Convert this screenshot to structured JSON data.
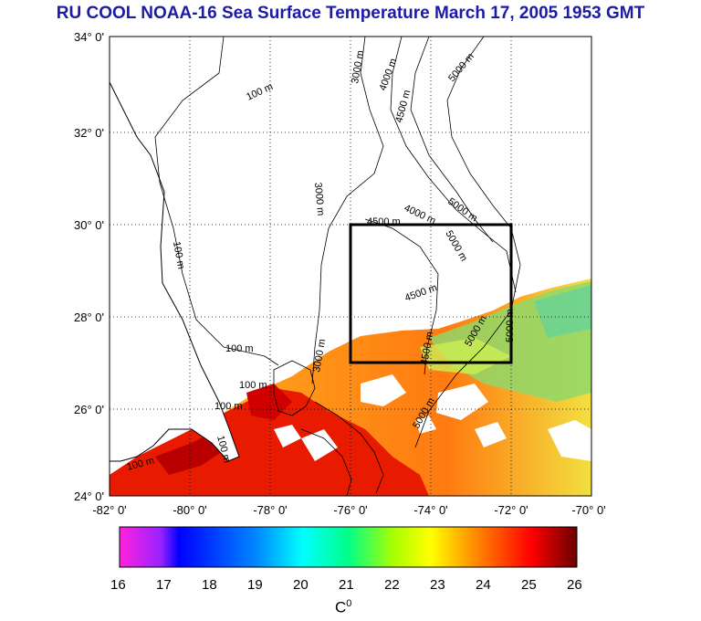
{
  "title": "RU COOL  NOAA-16 Sea Surface Temperature March 17, 2005 1953 GMT",
  "latitude_labels": [
    "34° 0'",
    "32° 0'",
    "30° 0'",
    "28° 0'",
    "26° 0'",
    "24° 0'"
  ],
  "longitude_labels": [
    "-82° 0'",
    "-80° 0'",
    "-78° 0'",
    "-76° 0'",
    "-74° 0'",
    "-72° 0'",
    "-70° 0'"
  ],
  "contour_labels": [
    "100 m",
    "100 m",
    "100 m",
    "100 m",
    "100 m",
    "100 m",
    "100 m",
    "3000 m",
    "3000 m",
    "3000 m",
    "4000 m",
    "4000 m",
    "4500 m",
    "4500 m",
    "4500 m",
    "4500 m",
    "5000 m",
    "5000 m",
    "5000 m",
    "5000 m",
    "5000 m",
    "5000 m"
  ],
  "colorbar": {
    "ticks": [
      "16",
      "17",
      "18",
      "19",
      "20",
      "21",
      "22",
      "23",
      "24",
      "25",
      "26"
    ],
    "unit": "C",
    "unit_sup": "0",
    "colors": [
      "#ff22dd",
      "#0000ff",
      "#00ffff",
      "#00ff66",
      "#ffff00",
      "#ff8800",
      "#ff0000",
      "#6a0000"
    ]
  },
  "map": {
    "lat_range": [
      24,
      34
    ],
    "lon_range": [
      -82,
      -70
    ],
    "study_box": {
      "lon": [
        -76,
        -72
      ],
      "lat": [
        27,
        30
      ]
    },
    "sst_warm_color": "#e84a00",
    "sst_cool_color": "#8ed46a"
  }
}
